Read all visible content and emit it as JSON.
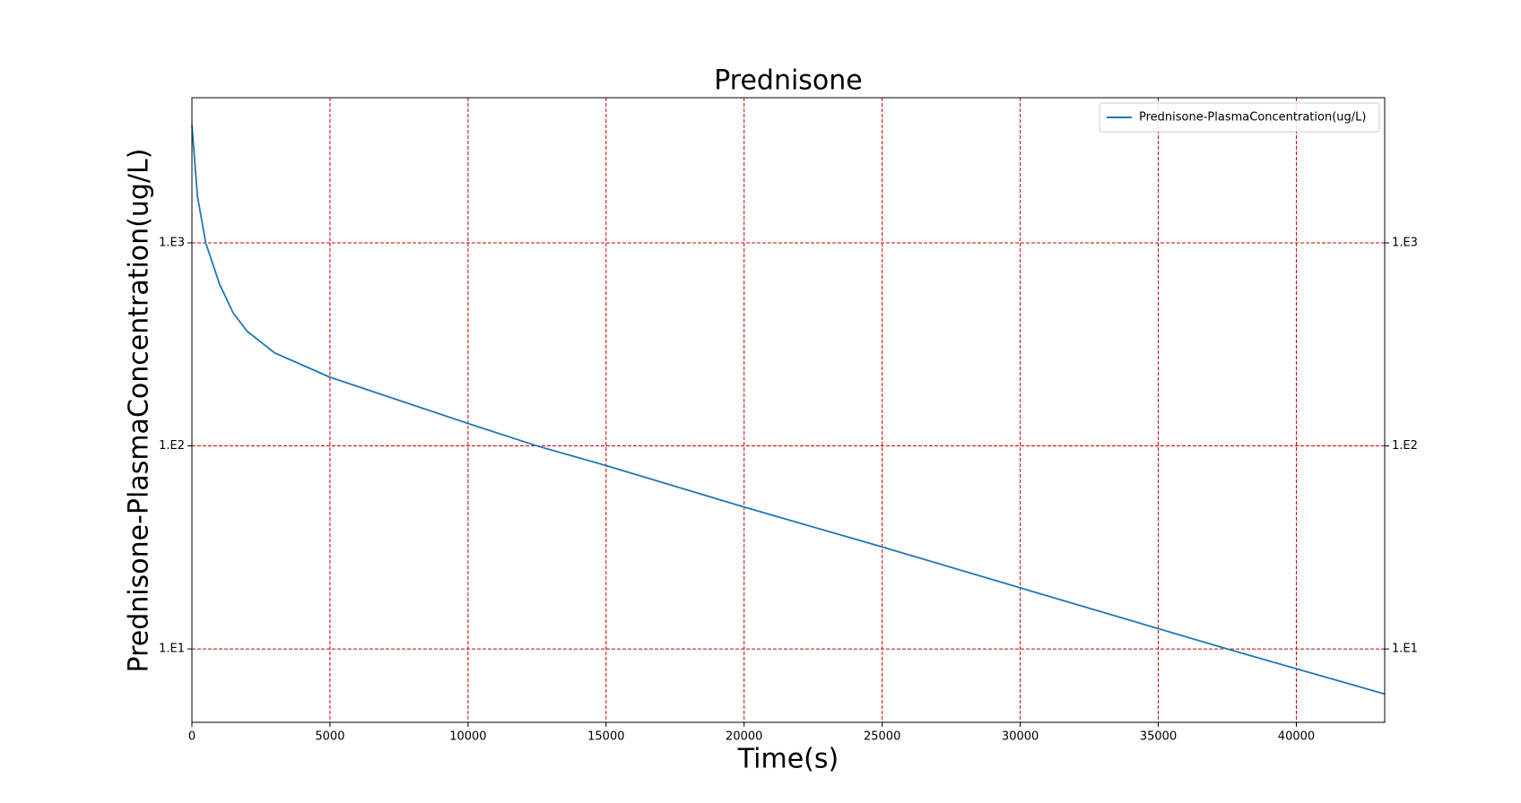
{
  "chart_data": {
    "type": "line",
    "title": "Prednisone",
    "x_label": "Time(s)",
    "y_label": "Prednisone-PlasmaConcentration(ug/L)",
    "x": [
      0,
      200,
      500,
      1000,
      1500,
      2000,
      3000,
      5000,
      10000,
      12500,
      15000,
      20000,
      25000,
      30000,
      37500,
      43200
    ],
    "series": [
      {
        "name": "Prednisone-PlasmaConcentration(ug/L)",
        "color": "#1f77b4",
        "values": [
          3800,
          1700,
          1000,
          627,
          450,
          367,
          287,
          218,
          129,
          100,
          80,
          50,
          31.8,
          20,
          10,
          6.0
        ]
      }
    ],
    "xlim": [
      0,
      43200
    ],
    "xticks": [
      0,
      5000,
      10000,
      15000,
      20000,
      25000,
      30000,
      35000,
      40000
    ],
    "ylim": [
      4.35,
      5190
    ],
    "ylog": true,
    "yticks": [
      {
        "value": 10,
        "label": "1.E1"
      },
      {
        "value": 100,
        "label": "1.E2"
      },
      {
        "value": 1000,
        "label": "1.E3"
      }
    ],
    "grid": true,
    "grid_color": "#cc0000",
    "legend": "upper right"
  }
}
